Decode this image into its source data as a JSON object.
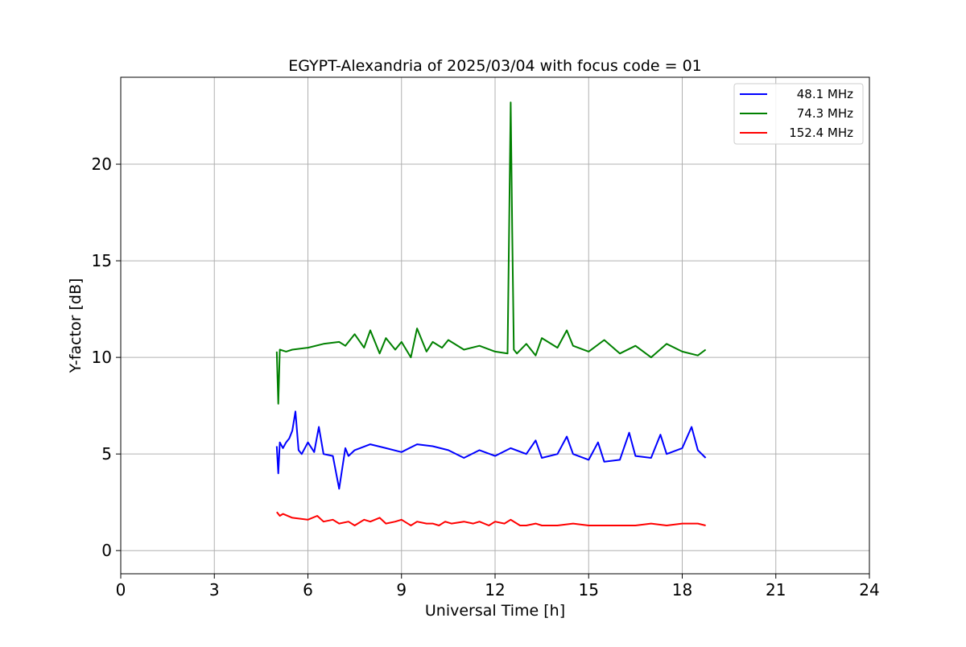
{
  "chart_data": {
    "type": "line",
    "title": "EGYPT-Alexandria of 2025/03/04 with focus code = 01",
    "xlabel": "Universal Time [h]",
    "ylabel": "Y-factor [dB]",
    "xlim": [
      0,
      24
    ],
    "ylim": [
      -1.2,
      24.5
    ],
    "x_ticks": [
      0,
      3,
      6,
      9,
      12,
      15,
      18,
      21,
      24
    ],
    "x_tick_labels": [
      "0",
      "3",
      "6",
      "9",
      "12",
      "15",
      "18",
      "21",
      "24"
    ],
    "y_ticks": [
      0,
      5,
      10,
      15,
      20
    ],
    "y_tick_labels": [
      "0",
      "5",
      "10",
      "15",
      "20"
    ],
    "grid": true,
    "legend_position": "top-right",
    "series": [
      {
        "name": "48.1 MHz",
        "color": "#0000ff",
        "x": [
          5.0,
          5.05,
          5.1,
          5.2,
          5.3,
          5.4,
          5.5,
          5.6,
          5.7,
          5.8,
          6.0,
          6.2,
          6.35,
          6.5,
          6.8,
          7.0,
          7.2,
          7.3,
          7.5,
          8.0,
          8.5,
          9.0,
          9.5,
          10.0,
          10.5,
          11.0,
          11.5,
          12.0,
          12.5,
          13.0,
          13.3,
          13.5,
          14.0,
          14.3,
          14.5,
          15.0,
          15.3,
          15.5,
          16.0,
          16.3,
          16.5,
          17.0,
          17.3,
          17.5,
          18.0,
          18.3,
          18.5,
          18.75
        ],
        "y": [
          5.4,
          4.0,
          5.6,
          5.3,
          5.6,
          5.8,
          6.2,
          7.2,
          5.2,
          5.0,
          5.6,
          5.1,
          6.4,
          5.0,
          4.9,
          3.2,
          5.3,
          4.9,
          5.2,
          5.5,
          5.3,
          5.1,
          5.5,
          5.4,
          5.2,
          4.8,
          5.2,
          4.9,
          5.3,
          5.0,
          5.7,
          4.8,
          5.0,
          5.9,
          5.0,
          4.7,
          5.6,
          4.6,
          4.7,
          6.1,
          4.9,
          4.8,
          6.0,
          5.0,
          5.3,
          6.4,
          5.2,
          4.8
        ]
      },
      {
        "name": "74.3 MHz",
        "color": "#008000",
        "x": [
          5.0,
          5.05,
          5.1,
          5.3,
          5.5,
          6.0,
          6.5,
          7.0,
          7.2,
          7.5,
          7.8,
          8.0,
          8.3,
          8.5,
          8.8,
          9.0,
          9.3,
          9.5,
          9.8,
          10.0,
          10.3,
          10.5,
          11.0,
          11.5,
          12.0,
          12.4,
          12.5,
          12.55,
          12.6,
          12.7,
          13.0,
          13.3,
          13.5,
          14.0,
          14.3,
          14.5,
          15.0,
          15.5,
          16.0,
          16.5,
          17.0,
          17.5,
          18.0,
          18.5,
          18.75
        ],
        "y": [
          10.3,
          7.6,
          10.4,
          10.3,
          10.4,
          10.5,
          10.7,
          10.8,
          10.6,
          11.2,
          10.5,
          11.4,
          10.2,
          11.0,
          10.4,
          10.8,
          10.0,
          11.5,
          10.3,
          10.8,
          10.5,
          10.9,
          10.4,
          10.6,
          10.3,
          10.2,
          23.2,
          16.5,
          10.4,
          10.2,
          10.7,
          10.1,
          11.0,
          10.5,
          11.4,
          10.6,
          10.3,
          10.9,
          10.2,
          10.6,
          10.0,
          10.7,
          10.3,
          10.1,
          10.4
        ]
      },
      {
        "name": "152.4 MHz",
        "color": "#ff0000",
        "x": [
          5.0,
          5.1,
          5.2,
          5.5,
          6.0,
          6.3,
          6.5,
          6.8,
          7.0,
          7.3,
          7.5,
          7.8,
          8.0,
          8.3,
          8.5,
          8.8,
          9.0,
          9.3,
          9.5,
          9.8,
          10.0,
          10.2,
          10.4,
          10.6,
          11.0,
          11.3,
          11.5,
          11.8,
          12.0,
          12.3,
          12.5,
          12.8,
          13.0,
          13.3,
          13.5,
          14.0,
          14.5,
          15.0,
          15.5,
          16.0,
          16.5,
          17.0,
          17.5,
          18.0,
          18.5,
          18.75
        ],
        "y": [
          2.0,
          1.8,
          1.9,
          1.7,
          1.6,
          1.8,
          1.5,
          1.6,
          1.4,
          1.5,
          1.3,
          1.6,
          1.5,
          1.7,
          1.4,
          1.5,
          1.6,
          1.3,
          1.5,
          1.4,
          1.4,
          1.3,
          1.5,
          1.4,
          1.5,
          1.4,
          1.5,
          1.3,
          1.5,
          1.4,
          1.6,
          1.3,
          1.3,
          1.4,
          1.3,
          1.3,
          1.4,
          1.3,
          1.3,
          1.3,
          1.3,
          1.4,
          1.3,
          1.4,
          1.4,
          1.3
        ]
      }
    ]
  }
}
